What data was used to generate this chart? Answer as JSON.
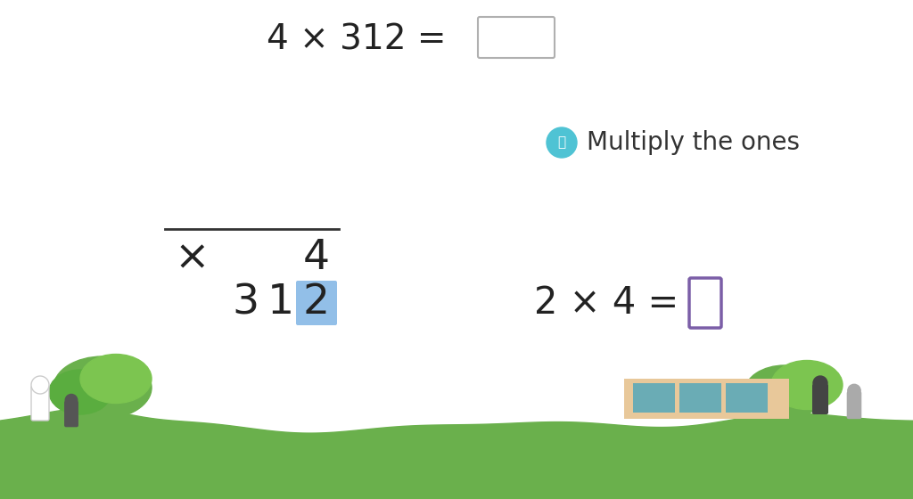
{
  "bg_color": "#ffffff",
  "grass_color": "#6ab04c",
  "grass_dark": "#4a9a30",
  "title_equation": "4 × 312 =",
  "title_fontsize": 28,
  "instruction_text": "Multiply the ones",
  "instruction_fontsize": 20,
  "icon_color": "#4fc3d4",
  "algo_highlight_bg": "#92bfe8",
  "algo_fontsize": 34,
  "sub_equation": "2 × 4 =",
  "sub_eq_fontsize": 30,
  "sub_box_color": "#7b5ea7"
}
